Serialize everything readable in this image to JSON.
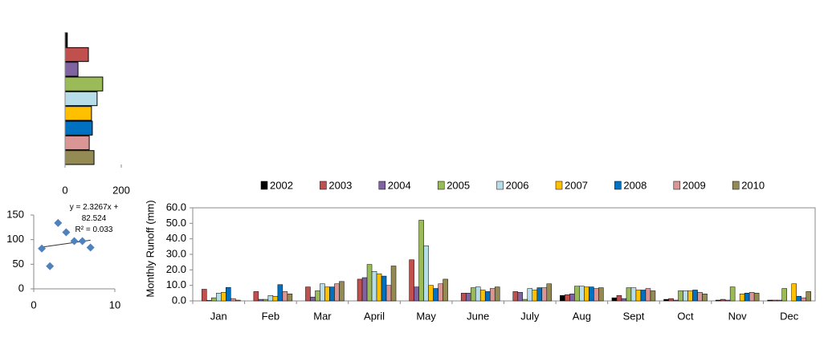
{
  "chart_data": [
    {
      "type": "bar",
      "orientation": "horizontal",
      "values": [
        8,
        83,
        46,
        134,
        114,
        94,
        97,
        86,
        103
      ],
      "colors": [
        "#000000",
        "#c0504d",
        "#8064a2",
        "#9bbb59",
        "#b7dee8",
        "#ffc000",
        "#0070c0",
        "#d99694",
        "#948a54"
      ],
      "xlim": [
        0,
        200
      ],
      "xticks": [
        0,
        200
      ]
    },
    {
      "type": "scatter",
      "x": [
        1,
        2,
        3,
        4,
        5,
        6,
        7
      ],
      "y": [
        82,
        46,
        134,
        115,
        97,
        97,
        84
      ],
      "color": "#4f81bd",
      "trendline": {
        "x": [
          1,
          7
        ],
        "y": [
          84.85,
          98.81
        ]
      },
      "annotations": [
        "y = 2.3267x + 82.524",
        "R² = 0.033"
      ],
      "xlim": [
        0,
        10
      ],
      "xticks": [
        0,
        10
      ],
      "ylim": [
        0,
        150
      ],
      "yticks": [
        0,
        50,
        100,
        150
      ]
    },
    {
      "type": "bar",
      "orientation": "vertical",
      "y_label": "Monthly  Runoff (mm)",
      "categories": [
        "Jan",
        "Feb",
        "Mar",
        "April",
        "May",
        "June",
        "July",
        "Aug",
        "Sept",
        "Oct",
        "Nov",
        "Dec"
      ],
      "series": [
        {
          "name": "2002",
          "color": "#000000",
          "values": [
            0,
            0,
            0,
            0,
            0,
            0,
            0,
            3.5,
            2,
            1,
            0.5,
            0.5
          ]
        },
        {
          "name": "2003",
          "color": "#c0504d",
          "values": [
            7.5,
            6,
            9,
            14,
            26.5,
            5,
            6,
            4,
            3.5,
            1.5,
            1,
            0.5
          ]
        },
        {
          "name": "2004",
          "color": "#8064a2",
          "values": [
            0.3,
            1,
            2.5,
            15,
            9,
            5,
            5.5,
            4.5,
            1.5,
            0.5,
            0.5,
            0.5
          ]
        },
        {
          "name": "2005",
          "color": "#9bbb59",
          "values": [
            2,
            1,
            6.5,
            23.5,
            52,
            8.5,
            1,
            9.5,
            8.5,
            6.5,
            9,
            8
          ]
        },
        {
          "name": "2006",
          "color": "#b7dee8",
          "values": [
            5,
            3.5,
            11,
            19,
            35.5,
            9,
            8,
            9.5,
            8.5,
            6.5,
            0,
            0
          ]
        },
        {
          "name": "2007",
          "color": "#ffc000",
          "values": [
            5.5,
            3,
            9,
            17.5,
            10,
            7,
            7,
            9,
            7,
            6.5,
            4.5,
            11
          ]
        },
        {
          "name": "2008",
          "color": "#0070c0",
          "values": [
            8.7,
            10.5,
            9,
            16,
            8,
            6,
            8.5,
            9,
            7,
            7,
            5,
            3
          ]
        },
        {
          "name": "2009",
          "color": "#d99694",
          "values": [
            1.5,
            6,
            11,
            10,
            11,
            8,
            8.5,
            8,
            8,
            5.5,
            5.5,
            2
          ]
        },
        {
          "name": "2010",
          "color": "#948a54",
          "values": [
            0.5,
            4.5,
            12.5,
            22.5,
            14,
            9,
            11,
            8.5,
            6.5,
            4.5,
            5,
            6
          ]
        }
      ],
      "ylim": [
        0,
        60
      ],
      "yticks": [
        {
          "value": 0,
          "label": "0.0"
        },
        {
          "value": 10,
          "label": "10.0"
        },
        {
          "value": 20,
          "label": "20.0"
        },
        {
          "value": 30,
          "label": "30.0"
        },
        {
          "value": 40,
          "label": "40.0"
        },
        {
          "value": 50,
          "label": "50.0"
        },
        {
          "value": 60,
          "label": "60.0"
        }
      ]
    }
  ]
}
